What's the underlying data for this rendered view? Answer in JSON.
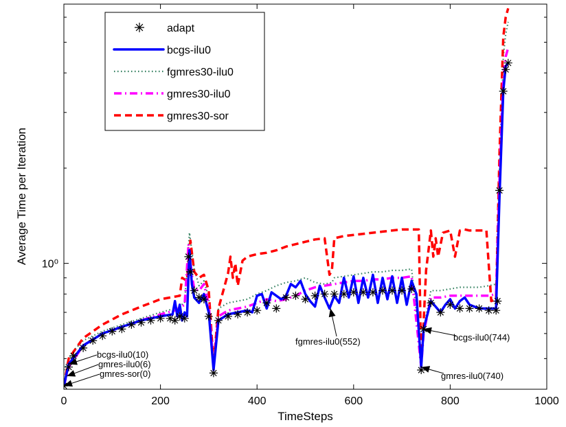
{
  "chart_data": {
    "type": "line",
    "xlabel": "TimeSteps",
    "ylabel": "Average Time per Iteration",
    "xlim": [
      0,
      1000
    ],
    "y_scale": "log",
    "ylim": [
      0.4,
      6.6
    ],
    "x_ticks": [
      0,
      200,
      400,
      600,
      800,
      1000
    ],
    "x_tick_labels": [
      "0",
      "200",
      "400",
      "600",
      "800",
      "1000"
    ],
    "y_ticks": [
      1
    ],
    "y_tick_labels": [
      "10⁰"
    ],
    "grid": false,
    "legend_placement": "top-left",
    "series": [
      {
        "name": "adapt",
        "style": "star-markers",
        "color": "#000000",
        "points": [
          [
            0,
            0.41
          ],
          [
            10,
            0.47
          ],
          [
            20,
            0.51
          ],
          [
            40,
            0.54
          ],
          [
            60,
            0.57
          ],
          [
            80,
            0.59
          ],
          [
            100,
            0.61
          ],
          [
            120,
            0.62
          ],
          [
            140,
            0.64
          ],
          [
            160,
            0.65
          ],
          [
            180,
            0.66
          ],
          [
            200,
            0.67
          ],
          [
            220,
            0.67
          ],
          [
            230,
            0.66
          ],
          [
            240,
            0.68
          ],
          [
            250,
            0.67
          ],
          [
            258,
            1.05
          ],
          [
            262,
            0.94
          ],
          [
            270,
            0.82
          ],
          [
            280,
            0.78
          ],
          [
            290,
            0.77
          ],
          [
            300,
            0.68
          ],
          [
            310,
            0.45
          ],
          [
            320,
            0.66
          ],
          [
            340,
            0.68
          ],
          [
            360,
            0.69
          ],
          [
            380,
            0.7
          ],
          [
            400,
            0.71
          ],
          [
            420,
            0.75
          ],
          [
            440,
            0.72
          ],
          [
            460,
            0.78
          ],
          [
            480,
            0.79
          ],
          [
            500,
            0.77
          ],
          [
            520,
            0.79
          ],
          [
            540,
            0.8
          ],
          [
            560,
            0.8
          ],
          [
            580,
            0.8
          ],
          [
            600,
            0.81
          ],
          [
            620,
            0.81
          ],
          [
            640,
            0.81
          ],
          [
            660,
            0.82
          ],
          [
            680,
            0.82
          ],
          [
            700,
            0.82
          ],
          [
            720,
            0.83
          ],
          [
            740,
            0.46
          ],
          [
            745,
            0.62
          ],
          [
            760,
            0.75
          ],
          [
            780,
            0.7
          ],
          [
            800,
            0.74
          ],
          [
            820,
            0.72
          ],
          [
            840,
            0.72
          ],
          [
            860,
            0.72
          ],
          [
            880,
            0.71
          ],
          [
            895,
            0.71
          ],
          [
            898,
            0.76
          ],
          [
            902,
            1.7
          ],
          [
            910,
            3.5
          ],
          [
            915,
            4.1
          ],
          [
            920,
            4.3
          ]
        ]
      },
      {
        "name": "bcgs-ilu0",
        "style": "solid",
        "color": "#0000ff",
        "points": [
          [
            0,
            0.41
          ],
          [
            10,
            0.48
          ],
          [
            40,
            0.55
          ],
          [
            80,
            0.6
          ],
          [
            120,
            0.63
          ],
          [
            160,
            0.66
          ],
          [
            200,
            0.68
          ],
          [
            225,
            0.69
          ],
          [
            230,
            0.76
          ],
          [
            235,
            0.68
          ],
          [
            240,
            0.74
          ],
          [
            245,
            0.66
          ],
          [
            250,
            0.7
          ],
          [
            255,
            0.68
          ],
          [
            260,
            1.1
          ],
          [
            265,
            0.86
          ],
          [
            270,
            0.78
          ],
          [
            280,
            0.75
          ],
          [
            290,
            0.8
          ],
          [
            300,
            0.7
          ],
          [
            310,
            0.46
          ],
          [
            320,
            0.66
          ],
          [
            340,
            0.69
          ],
          [
            360,
            0.7
          ],
          [
            380,
            0.71
          ],
          [
            390,
            0.7
          ],
          [
            400,
            0.79
          ],
          [
            410,
            0.8
          ],
          [
            420,
            0.72
          ],
          [
            430,
            0.81
          ],
          [
            440,
            0.79
          ],
          [
            450,
            0.77
          ],
          [
            460,
            0.79
          ],
          [
            470,
            0.86
          ],
          [
            480,
            0.84
          ],
          [
            490,
            0.88
          ],
          [
            500,
            0.8
          ],
          [
            510,
            0.76
          ],
          [
            520,
            0.73
          ],
          [
            530,
            0.85
          ],
          [
            540,
            0.78
          ],
          [
            550,
            0.72
          ],
          [
            560,
            0.79
          ],
          [
            570,
            0.75
          ],
          [
            580,
            0.9
          ],
          [
            590,
            0.78
          ],
          [
            600,
            0.91
          ],
          [
            610,
            0.75
          ],
          [
            620,
            0.9
          ],
          [
            630,
            0.78
          ],
          [
            640,
            0.92
          ],
          [
            650,
            0.75
          ],
          [
            660,
            0.9
          ],
          [
            670,
            0.77
          ],
          [
            680,
            0.91
          ],
          [
            690,
            0.75
          ],
          [
            700,
            0.9
          ],
          [
            710,
            0.74
          ],
          [
            720,
            0.88
          ],
          [
            730,
            0.8
          ],
          [
            740,
            0.47
          ],
          [
            745,
            0.62
          ],
          [
            760,
            0.76
          ],
          [
            780,
            0.7
          ],
          [
            790,
            0.74
          ],
          [
            800,
            0.77
          ],
          [
            810,
            0.72
          ],
          [
            820,
            0.76
          ],
          [
            830,
            0.78
          ],
          [
            840,
            0.74
          ],
          [
            860,
            0.72
          ],
          [
            880,
            0.72
          ],
          [
            895,
            0.72
          ],
          [
            902,
            1.6
          ],
          [
            910,
            3.5
          ],
          [
            915,
            4.2
          ],
          [
            920,
            4.3
          ]
        ]
      },
      {
        "name": "fgmres30-ilu0",
        "style": "dotted",
        "color": "#2e7d5b",
        "points": [
          [
            0,
            0.46
          ],
          [
            20,
            0.53
          ],
          [
            40,
            0.57
          ],
          [
            80,
            0.61
          ],
          [
            120,
            0.64
          ],
          [
            160,
            0.67
          ],
          [
            200,
            0.7
          ],
          [
            230,
            0.72
          ],
          [
            250,
            0.75
          ],
          [
            260,
            1.25
          ],
          [
            270,
            0.96
          ],
          [
            280,
            0.85
          ],
          [
            290,
            0.88
          ],
          [
            300,
            0.78
          ],
          [
            310,
            0.49
          ],
          [
            320,
            0.72
          ],
          [
            340,
            0.75
          ],
          [
            360,
            0.76
          ],
          [
            380,
            0.77
          ],
          [
            400,
            0.8
          ],
          [
            420,
            0.82
          ],
          [
            440,
            0.85
          ],
          [
            460,
            0.87
          ],
          [
            480,
            0.88
          ],
          [
            500,
            0.9
          ],
          [
            520,
            0.87
          ],
          [
            540,
            0.86
          ],
          [
            555,
            0.87
          ],
          [
            560,
            0.9
          ],
          [
            580,
            0.91
          ],
          [
            600,
            0.92
          ],
          [
            620,
            0.93
          ],
          [
            640,
            0.94
          ],
          [
            660,
            0.94
          ],
          [
            680,
            0.95
          ],
          [
            700,
            0.95
          ],
          [
            720,
            0.96
          ],
          [
            740,
            0.51
          ],
          [
            750,
            0.68
          ],
          [
            760,
            0.82
          ],
          [
            780,
            0.82
          ],
          [
            800,
            0.83
          ],
          [
            820,
            0.84
          ],
          [
            840,
            0.84
          ],
          [
            860,
            0.84
          ],
          [
            880,
            0.85
          ],
          [
            895,
            0.86
          ],
          [
            902,
            2.0
          ],
          [
            910,
            4.5
          ],
          [
            915,
            5.3
          ],
          [
            920,
            5.8
          ]
        ]
      },
      {
        "name": "gmres30-ilu0",
        "style": "dash-dot",
        "color": "#ff00ff",
        "points": [
          [
            0,
            0.41
          ],
          [
            10,
            0.47
          ],
          [
            40,
            0.55
          ],
          [
            80,
            0.6
          ],
          [
            120,
            0.63
          ],
          [
            160,
            0.66
          ],
          [
            200,
            0.69
          ],
          [
            230,
            0.71
          ],
          [
            250,
            0.74
          ],
          [
            258,
            1.15
          ],
          [
            265,
            0.92
          ],
          [
            270,
            0.83
          ],
          [
            280,
            0.82
          ],
          [
            290,
            0.86
          ],
          [
            300,
            0.74
          ],
          [
            310,
            0.47
          ],
          [
            320,
            0.68
          ],
          [
            340,
            0.71
          ],
          [
            360,
            0.72
          ],
          [
            380,
            0.73
          ],
          [
            400,
            0.75
          ],
          [
            420,
            0.77
          ],
          [
            440,
            0.76
          ],
          [
            460,
            0.77
          ],
          [
            480,
            0.79
          ],
          [
            500,
            0.82
          ],
          [
            520,
            0.84
          ],
          [
            540,
            0.85
          ],
          [
            560,
            0.86
          ],
          [
            580,
            0.87
          ],
          [
            600,
            0.88
          ],
          [
            620,
            0.88
          ],
          [
            640,
            0.89
          ],
          [
            660,
            0.89
          ],
          [
            680,
            0.9
          ],
          [
            700,
            0.9
          ],
          [
            720,
            0.91
          ],
          [
            740,
            0.47
          ],
          [
            745,
            0.6
          ],
          [
            760,
            0.78
          ],
          [
            780,
            0.78
          ],
          [
            800,
            0.79
          ],
          [
            820,
            0.79
          ],
          [
            840,
            0.79
          ],
          [
            860,
            0.79
          ],
          [
            880,
            0.79
          ],
          [
            895,
            0.8
          ],
          [
            902,
            1.8
          ],
          [
            910,
            3.8
          ],
          [
            915,
            4.5
          ],
          [
            920,
            4.8
          ]
        ]
      },
      {
        "name": "gmres30-sor",
        "style": "dashed",
        "color": "#ff0000",
        "points": [
          [
            0,
            0.41
          ],
          [
            10,
            0.5
          ],
          [
            40,
            0.58
          ],
          [
            80,
            0.64
          ],
          [
            120,
            0.69
          ],
          [
            160,
            0.73
          ],
          [
            200,
            0.77
          ],
          [
            220,
            0.78
          ],
          [
            240,
            0.79
          ],
          [
            245,
            0.9
          ],
          [
            255,
            0.88
          ],
          [
            262,
            1.18
          ],
          [
            270,
            0.94
          ],
          [
            280,
            0.9
          ],
          [
            290,
            0.92
          ],
          [
            300,
            0.82
          ],
          [
            310,
            0.48
          ],
          [
            320,
            0.72
          ],
          [
            340,
            0.93
          ],
          [
            345,
            1.05
          ],
          [
            350,
            0.9
          ],
          [
            355,
            1.0
          ],
          [
            360,
            0.85
          ],
          [
            370,
            1.02
          ],
          [
            380,
            1.05
          ],
          [
            400,
            1.07
          ],
          [
            420,
            1.08
          ],
          [
            440,
            1.1
          ],
          [
            460,
            1.13
          ],
          [
            480,
            1.15
          ],
          [
            500,
            1.17
          ],
          [
            520,
            1.19
          ],
          [
            540,
            1.2
          ],
          [
            550,
            0.92
          ],
          [
            555,
            0.95
          ],
          [
            560,
            1.2
          ],
          [
            580,
            1.22
          ],
          [
            600,
            1.23
          ],
          [
            620,
            1.24
          ],
          [
            640,
            1.25
          ],
          [
            660,
            1.26
          ],
          [
            680,
            1.27
          ],
          [
            700,
            1.28
          ],
          [
            720,
            1.28
          ],
          [
            735,
            1.28
          ],
          [
            740,
            0.48
          ],
          [
            745,
            0.65
          ],
          [
            750,
            0.95
          ],
          [
            760,
            1.27
          ],
          [
            765,
            1.05
          ],
          [
            770,
            1.2
          ],
          [
            775,
            1.05
          ],
          [
            785,
            1.25
          ],
          [
            800,
            1.27
          ],
          [
            810,
            1.05
          ],
          [
            820,
            1.27
          ],
          [
            830,
            1.28
          ],
          [
            840,
            1.27
          ],
          [
            860,
            1.27
          ],
          [
            875,
            1.27
          ],
          [
            885,
            0.76
          ],
          [
            895,
            0.77
          ],
          [
            902,
            2.2
          ],
          [
            910,
            5.2
          ],
          [
            915,
            6.0
          ],
          [
            920,
            6.4
          ]
        ]
      }
    ],
    "annotations": [
      {
        "text": "bcgs-ilu0(10)",
        "x": 10,
        "y": 0.48
      },
      {
        "text": "gmres-ilu0(6)",
        "x": 6,
        "y": 0.44
      },
      {
        "text": "gmres-sor(0)",
        "x": 0,
        "y": 0.41
      },
      {
        "text": "fgmres-ilu0(552)",
        "x": 552,
        "y": 0.72
      },
      {
        "text": "bcgs-ilu0(744)",
        "x": 744,
        "y": 0.62
      },
      {
        "text": "gmres-ilu0(740)",
        "x": 740,
        "y": 0.47
      }
    ]
  }
}
